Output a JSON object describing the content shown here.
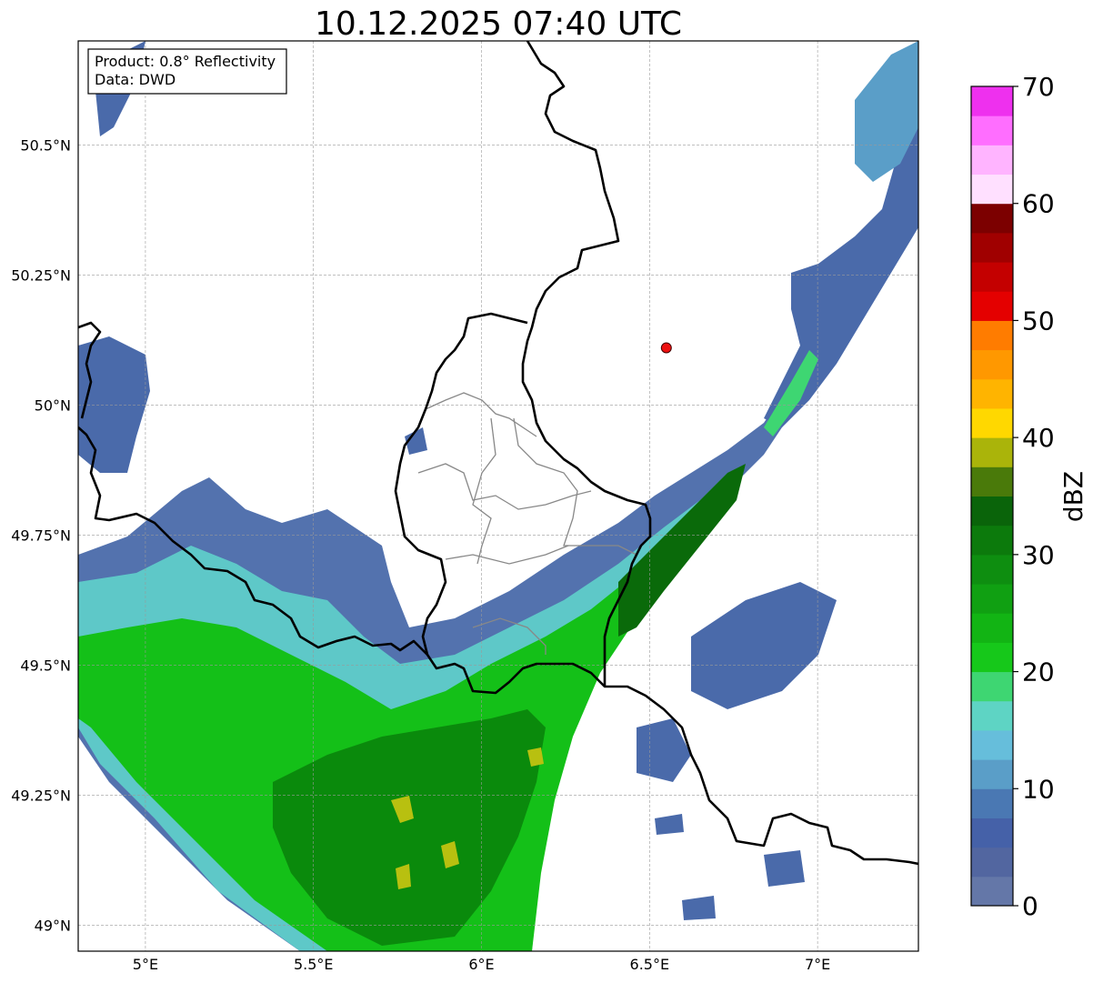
{
  "title": "10.12.2025 07:40 UTC",
  "legend": {
    "product": "Product: 0.8° Reflectivity",
    "source": "Data: DWD"
  },
  "map": {
    "lon_range": [
      4.8,
      7.3
    ],
    "lat_range": [
      48.95,
      50.7
    ],
    "x_ticks": [
      {
        "value": 5.0,
        "label": "5°E"
      },
      {
        "value": 5.5,
        "label": "5.5°E"
      },
      {
        "value": 6.0,
        "label": "6°E"
      },
      {
        "value": 6.5,
        "label": "6.5°E"
      },
      {
        "value": 7.0,
        "label": "7°E"
      }
    ],
    "y_ticks": [
      {
        "value": 49.0,
        "label": "49°N"
      },
      {
        "value": 49.25,
        "label": "49.25°N"
      },
      {
        "value": 49.5,
        "label": "49.5°N"
      },
      {
        "value": 49.75,
        "label": "49.75°N"
      },
      {
        "value": 50.0,
        "label": "50°N"
      },
      {
        "value": 50.25,
        "label": "50.25°N"
      },
      {
        "value": 50.5,
        "label": "50.5°N"
      }
    ],
    "grid": true,
    "marker": {
      "lon": 6.55,
      "lat": 50.11,
      "color": "#ee1111"
    }
  },
  "colorbar": {
    "label": "dBZ",
    "min": 0,
    "max": 70,
    "ticks": [
      {
        "value": 0,
        "label": "0"
      },
      {
        "value": 10,
        "label": "10"
      },
      {
        "value": 20,
        "label": "20"
      },
      {
        "value": 30,
        "label": "30"
      },
      {
        "value": 40,
        "label": "40"
      },
      {
        "value": 50,
        "label": "50"
      },
      {
        "value": 60,
        "label": "60"
      },
      {
        "value": 70,
        "label": "70"
      }
    ],
    "colors": [
      "#6477a8",
      "#5266a0",
      "#4561a8",
      "#4a78b3",
      "#5a9ec8",
      "#66bedb",
      "#5ed4c4",
      "#3ed672",
      "#16c81a",
      "#12b414",
      "#10a012",
      "#0e8e10",
      "#0c7a0c",
      "#0a640a",
      "#4a7a0a",
      "#aab40a",
      "#ffd800",
      "#ffb400",
      "#ff9800",
      "#ff7c00",
      "#e40000",
      "#c40000",
      "#a00000",
      "#7c0000",
      "#ffe0ff",
      "#ffb4ff",
      "#ff6eff",
      "#ee30ee"
    ]
  }
}
